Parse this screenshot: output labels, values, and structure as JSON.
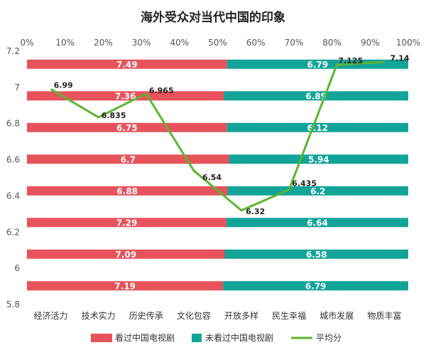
{
  "chart_data": {
    "type": "bar",
    "title": "海外受众对当代中国的印象",
    "categories": [
      "经济活力",
      "技术实力",
      "历史传承",
      "文化包容",
      "开放多样",
      "民生幸福",
      "城市发展",
      "物质丰富"
    ],
    "x_percent_ticks": [
      "0%",
      "10%",
      "20%",
      "30%",
      "40%",
      "50%",
      "60%",
      "70%",
      "80%",
      "90%",
      "100%"
    ],
    "y_ticks": [
      "5.8",
      "6",
      "6.2",
      "6.4",
      "6.6",
      "6.8",
      "7",
      "7.2"
    ],
    "ylim": [
      5.8,
      7.2
    ],
    "stacked_bars_100pct": true,
    "series": [
      {
        "name": "看过中国电视剧",
        "color": "#e8525a",
        "values": [
          7.19,
          7.09,
          7.29,
          6.88,
          6.7,
          6.75,
          7.36,
          7.49
        ],
        "value_labels": [
          "7.19",
          "7.09",
          "7.29",
          "6.88",
          "6.7",
          "6.75",
          "7.36",
          "7.49"
        ]
      },
      {
        "name": "未看过中国电视剧",
        "color": "#12a499",
        "values": [
          6.79,
          6.58,
          6.64,
          6.2,
          5.94,
          6.12,
          6.89,
          6.79
        ],
        "value_labels": [
          "6.79",
          "6.58",
          "6.64",
          "6.2",
          "5.94",
          "6.12",
          "6.89",
          "6.79"
        ]
      },
      {
        "name": "平均分",
        "type": "line",
        "color": "#5cb531",
        "values": [
          6.99,
          6.835,
          6.965,
          6.54,
          6.32,
          6.435,
          7.125,
          7.14
        ],
        "value_labels": [
          "6.99",
          "6.835",
          "6.965",
          "6.54",
          "6.32",
          "6.435",
          "7.125",
          "7.14"
        ]
      }
    ],
    "legend_position": "bottom",
    "grid": false
  }
}
